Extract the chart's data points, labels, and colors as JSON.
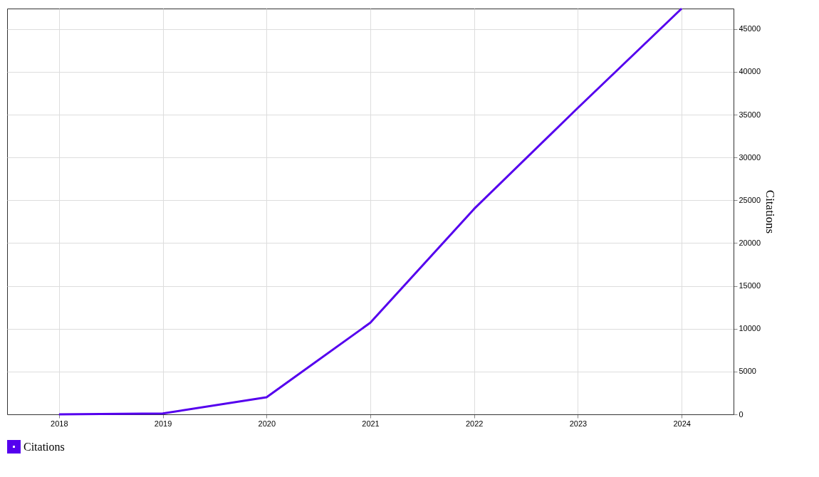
{
  "chart_data": {
    "type": "line",
    "ylabel": "Citations",
    "x": [
      2018,
      2019,
      2020,
      2021,
      2022,
      2023,
      2024
    ],
    "series": [
      {
        "name": "Citations",
        "color": "#5500ee",
        "values": [
          0,
          100,
          2000,
          10700,
          24000,
          35800,
          47400
        ]
      }
    ],
    "xlim": [
      2017.5,
      2024.5
    ],
    "xticks": [
      2018,
      2019,
      2020,
      2021,
      2022,
      2023,
      2024
    ],
    "ylim": [
      0,
      47400
    ],
    "yticks": [
      0,
      5000,
      10000,
      15000,
      20000,
      25000,
      30000,
      35000,
      40000,
      45000
    ],
    "grid": true,
    "legend": "bottom",
    "marker": "none",
    "line_style": "solid"
  }
}
